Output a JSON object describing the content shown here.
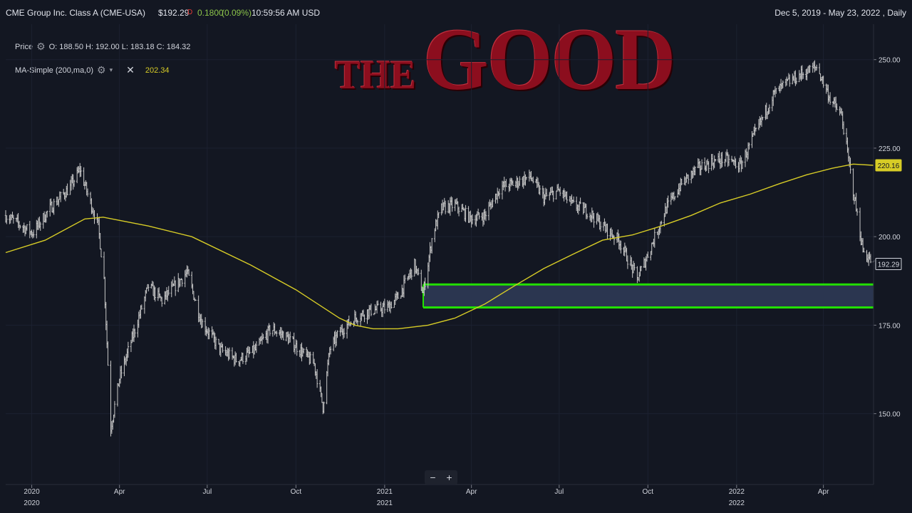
{
  "header": {
    "symbol_title": "CME Group Inc. Class A (CME-USA)",
    "last_price": "$192.29",
    "change_marker": "D",
    "change": "0.1800",
    "change_pct": "(0.09%)",
    "time": "10:59:56 AM USD",
    "date_range": "Dec 5, 2019 - May 23, 2022 , Daily"
  },
  "legend": {
    "price": {
      "label": "Price",
      "ohlc": "O: 188.50  H: 192.00  L: 183.18  C: 184.32"
    },
    "ma": {
      "label": "MA-Simple (200,ma,0)",
      "value": "202.34"
    }
  },
  "overlay": {
    "the": "THE",
    "good": "GOOD"
  },
  "zoom": {
    "minus": "−",
    "plus": "+"
  },
  "price_tags": {
    "ma_value": "220.16",
    "last_price": "192.29"
  },
  "colors": {
    "background": "#131722",
    "price_bars": "#c8c8c8",
    "ma_line": "#d7cc26",
    "support_zone_fill": "#2b3650",
    "support_zone_border": "#22e000",
    "up": "#4caf50",
    "down": "#e53935",
    "overlay_text": "#8c0e1e"
  },
  "chart_data": {
    "type": "line",
    "title": "",
    "xlabel": "",
    "ylabel": "",
    "x_ticks": [
      "2020",
      "Apr",
      "Jul",
      "Oct",
      "2021",
      "Apr",
      "Jul",
      "Oct",
      "2022",
      "Apr"
    ],
    "y_ticks": [
      150,
      175,
      200,
      225,
      250
    ],
    "ylim": [
      130,
      260
    ],
    "xlim": [
      "2019-12-05",
      "2022-05-23"
    ],
    "grid": true,
    "series": [
      {
        "style": "ohlc-bars",
        "x": [
          "2019-12-05",
          "2020-01-02",
          "2020-01-20",
          "2020-02-10",
          "2020-02-20",
          "2020-02-28",
          "2020-03-10",
          "2020-03-16",
          "2020-03-23",
          "2020-04-01",
          "2020-04-15",
          "2020-05-01",
          "2020-05-15",
          "2020-06-01",
          "2020-06-10",
          "2020-06-25",
          "2020-07-15",
          "2020-08-01",
          "2020-08-20",
          "2020-09-05",
          "2020-09-20",
          "2020-10-05",
          "2020-10-20",
          "2020-10-29",
          "2020-11-05",
          "2020-11-15",
          "2020-12-01",
          "2020-12-15",
          "2021-01-04",
          "2021-01-15",
          "2021-02-01",
          "2021-02-10",
          "2021-02-20",
          "2021-03-01",
          "2021-03-15",
          "2021-04-01",
          "2021-04-15",
          "2021-05-01",
          "2021-05-15",
          "2021-06-01",
          "2021-06-15",
          "2021-07-01",
          "2021-07-15",
          "2021-08-01",
          "2021-08-15",
          "2021-09-01",
          "2021-09-20",
          "2021-10-01",
          "2021-10-20",
          "2021-11-05",
          "2021-11-20",
          "2021-12-05",
          "2021-12-20",
          "2022-01-05",
          "2022-01-20",
          "2022-02-08",
          "2022-02-20",
          "2022-03-10",
          "2022-03-25",
          "2022-04-08",
          "2022-04-20",
          "2022-05-02",
          "2022-05-12",
          "2022-05-23"
        ],
        "values": [
          206,
          201,
          208,
          214,
          219,
          212,
          203,
          188,
          146,
          160,
          172,
          186,
          182,
          187,
          190,
          176,
          168,
          165,
          168,
          174,
          172,
          168,
          164,
          152,
          168,
          173,
          177,
          179,
          180,
          183,
          192,
          184,
          201,
          208,
          209,
          205,
          206,
          214,
          215,
          217,
          211,
          213,
          209,
          207,
          203,
          199,
          188,
          195,
          208,
          215,
          219,
          221,
          222,
          220,
          229,
          240,
          243,
          246,
          248,
          239,
          234,
          213,
          196,
          192.29
        ]
      },
      {
        "name": "MA-Simple (200,ma,0)",
        "style": "line",
        "x": [
          "2019-12-05",
          "2020-01-15",
          "2020-02-25",
          "2020-03-15",
          "2020-05-01",
          "2020-06-15",
          "2020-08-15",
          "2020-10-01",
          "2020-11-15",
          "2020-12-01",
          "2020-12-20",
          "2021-01-15",
          "2021-02-15",
          "2021-03-15",
          "2021-04-15",
          "2021-05-15",
          "2021-06-15",
          "2021-07-15",
          "2021-08-15",
          "2021-09-15",
          "2021-10-15",
          "2021-11-15",
          "2021-12-15",
          "2022-01-15",
          "2022-02-15",
          "2022-03-15",
          "2022-04-10",
          "2022-05-02",
          "2022-05-23"
        ],
        "values": [
          195.5,
          199,
          205,
          205.5,
          203,
          200,
          192,
          185,
          177,
          175,
          174,
          174,
          175,
          177,
          181,
          186,
          191,
          195,
          199,
          200.5,
          203,
          206,
          209.5,
          212,
          215,
          217.5,
          219.3,
          220.5,
          220.16
        ]
      }
    ],
    "annotations": [
      {
        "type": "zone",
        "y0": 180,
        "y1": 186.5,
        "x_start": "2021-02-10"
      }
    ]
  }
}
